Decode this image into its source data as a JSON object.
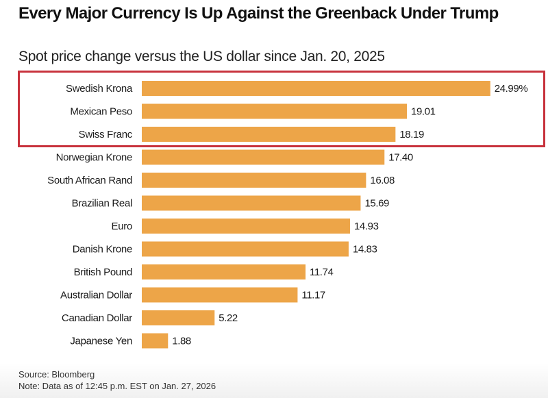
{
  "chart_data": {
    "type": "bar",
    "orientation": "horizontal",
    "title": "Every Major Currency Is Up Against the Greenback Under Trump",
    "subtitle": "Spot price change versus the US dollar since Jan. 20, 2025",
    "xlabel": "",
    "ylabel": "",
    "unit": "%",
    "xlim": [
      0,
      25
    ],
    "grid": false,
    "categories": [
      "Swedish Krona",
      "Mexican Peso",
      "Swiss Franc",
      "Norwegian Krone",
      "South African Rand",
      "Brazilian Real",
      "Euro",
      "Danish Krone",
      "British Pound",
      "Australian Dollar",
      "Canadian Dollar",
      "Japanese Yen"
    ],
    "values": [
      24.99,
      19.01,
      18.19,
      17.4,
      16.08,
      15.69,
      14.93,
      14.83,
      11.74,
      11.17,
      5.22,
      1.88
    ],
    "value_labels": [
      "24.99%",
      "19.01",
      "18.19",
      "17.40",
      "16.08",
      "15.69",
      "14.93",
      "14.83",
      "11.74",
      "11.17",
      "5.22",
      "1.88"
    ],
    "highlighted_categories": [
      "Swedish Krona",
      "Mexican Peso",
      "Swiss Franc"
    ],
    "colors": {
      "bar": "#eda548",
      "highlight_border": "#c8323c"
    }
  },
  "footer": {
    "source": "Source: Bloomberg",
    "note": "Note: Data as of 12:45 p.m. EST on Jan. 27, 2026"
  }
}
